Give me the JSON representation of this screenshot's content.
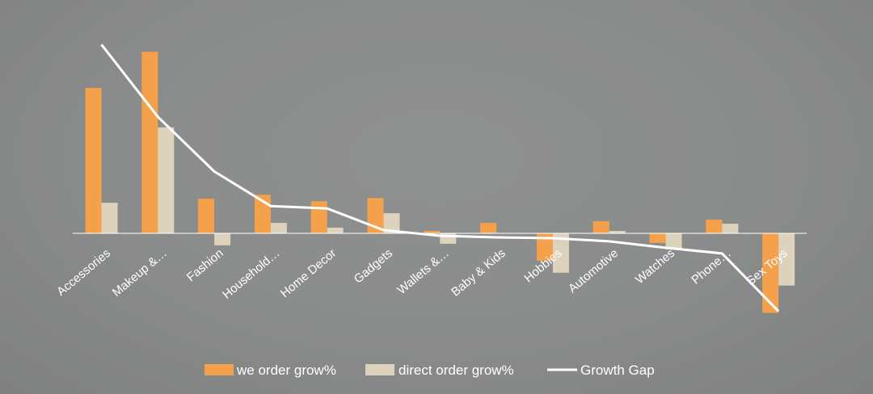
{
  "chart_data": {
    "type": "bar+line",
    "title": "",
    "xlabel": "",
    "ylabel": "",
    "categories": [
      "Accessories",
      "Makeup &…",
      "Fashion",
      "Household…",
      "Home Decor",
      "Gadgets",
      "Wallets &…",
      "Baby & Kids",
      "Hobbies",
      "Automotive",
      "Watches",
      "Phone…",
      "Sex Toys"
    ],
    "series": [
      {
        "name": "we order grow%",
        "kind": "bar",
        "color": "#f5a04a",
        "values": [
          181,
          226,
          43,
          48,
          40,
          44,
          3,
          13,
          -34,
          15,
          -12,
          17,
          -99
        ]
      },
      {
        "name": "direct order grow%",
        "kind": "bar",
        "color": "#ddd2bb",
        "values": [
          38,
          132,
          -15,
          13,
          7,
          25,
          -13,
          0,
          -49,
          3,
          -20,
          12,
          -65
        ]
      },
      {
        "name": "Growth Gap",
        "kind": "line",
        "color": "#ffffff",
        "values": [
          235,
          145,
          77,
          34,
          31,
          4,
          -3,
          -5,
          -6,
          -10,
          -18,
          -25,
          -97
        ]
      }
    ],
    "ylim": [
      -100,
      240
    ],
    "grid": false,
    "legend_position": "bottom-center"
  }
}
